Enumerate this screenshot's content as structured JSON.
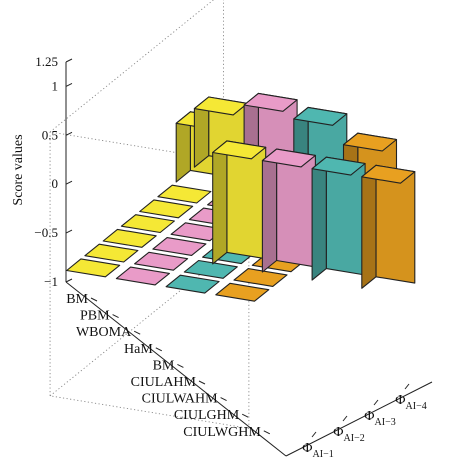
{
  "chart_data": {
    "type": "bar3d",
    "ylabel": "Score values",
    "zlim": [
      -1,
      1.25
    ],
    "z_ticks": [
      "1.25",
      "1",
      "0.5",
      "0",
      "−0.5",
      "−1"
    ],
    "z_tick_values": [
      1.25,
      1,
      0.5,
      0,
      -0.5,
      -1
    ],
    "categories": [
      "BM",
      "PBM",
      "WBOMA",
      "HaM",
      "BM",
      "CIULAHM",
      "CIULWAHM",
      "CIULGHM",
      "CIULWGHM"
    ],
    "series": [
      {
        "name_main": "Φ",
        "name_sub": "AI−1",
        "color": "#e8a020",
        "values": [
          0,
          0,
          0,
          0,
          0,
          -0.2,
          0.4,
          0.4,
          -0.95
        ]
      },
      {
        "name_main": "Φ",
        "name_sub": "AI−2",
        "color": "#4fb7b0",
        "values": [
          0,
          0,
          0,
          0,
          0,
          0,
          0.55,
          0.55,
          -0.95
        ]
      },
      {
        "name_main": "Φ",
        "name_sub": "AI−3",
        "color": "#e99bc8",
        "values": [
          0,
          0,
          0,
          0,
          0,
          0,
          0.6,
          0.6,
          -0.95
        ]
      },
      {
        "name_main": "Φ",
        "name_sub": "AI−4",
        "color": "#f5e835",
        "values": [
          0,
          0,
          0,
          0,
          0,
          0,
          0.5,
          0.5,
          -0.95
        ]
      }
    ]
  }
}
